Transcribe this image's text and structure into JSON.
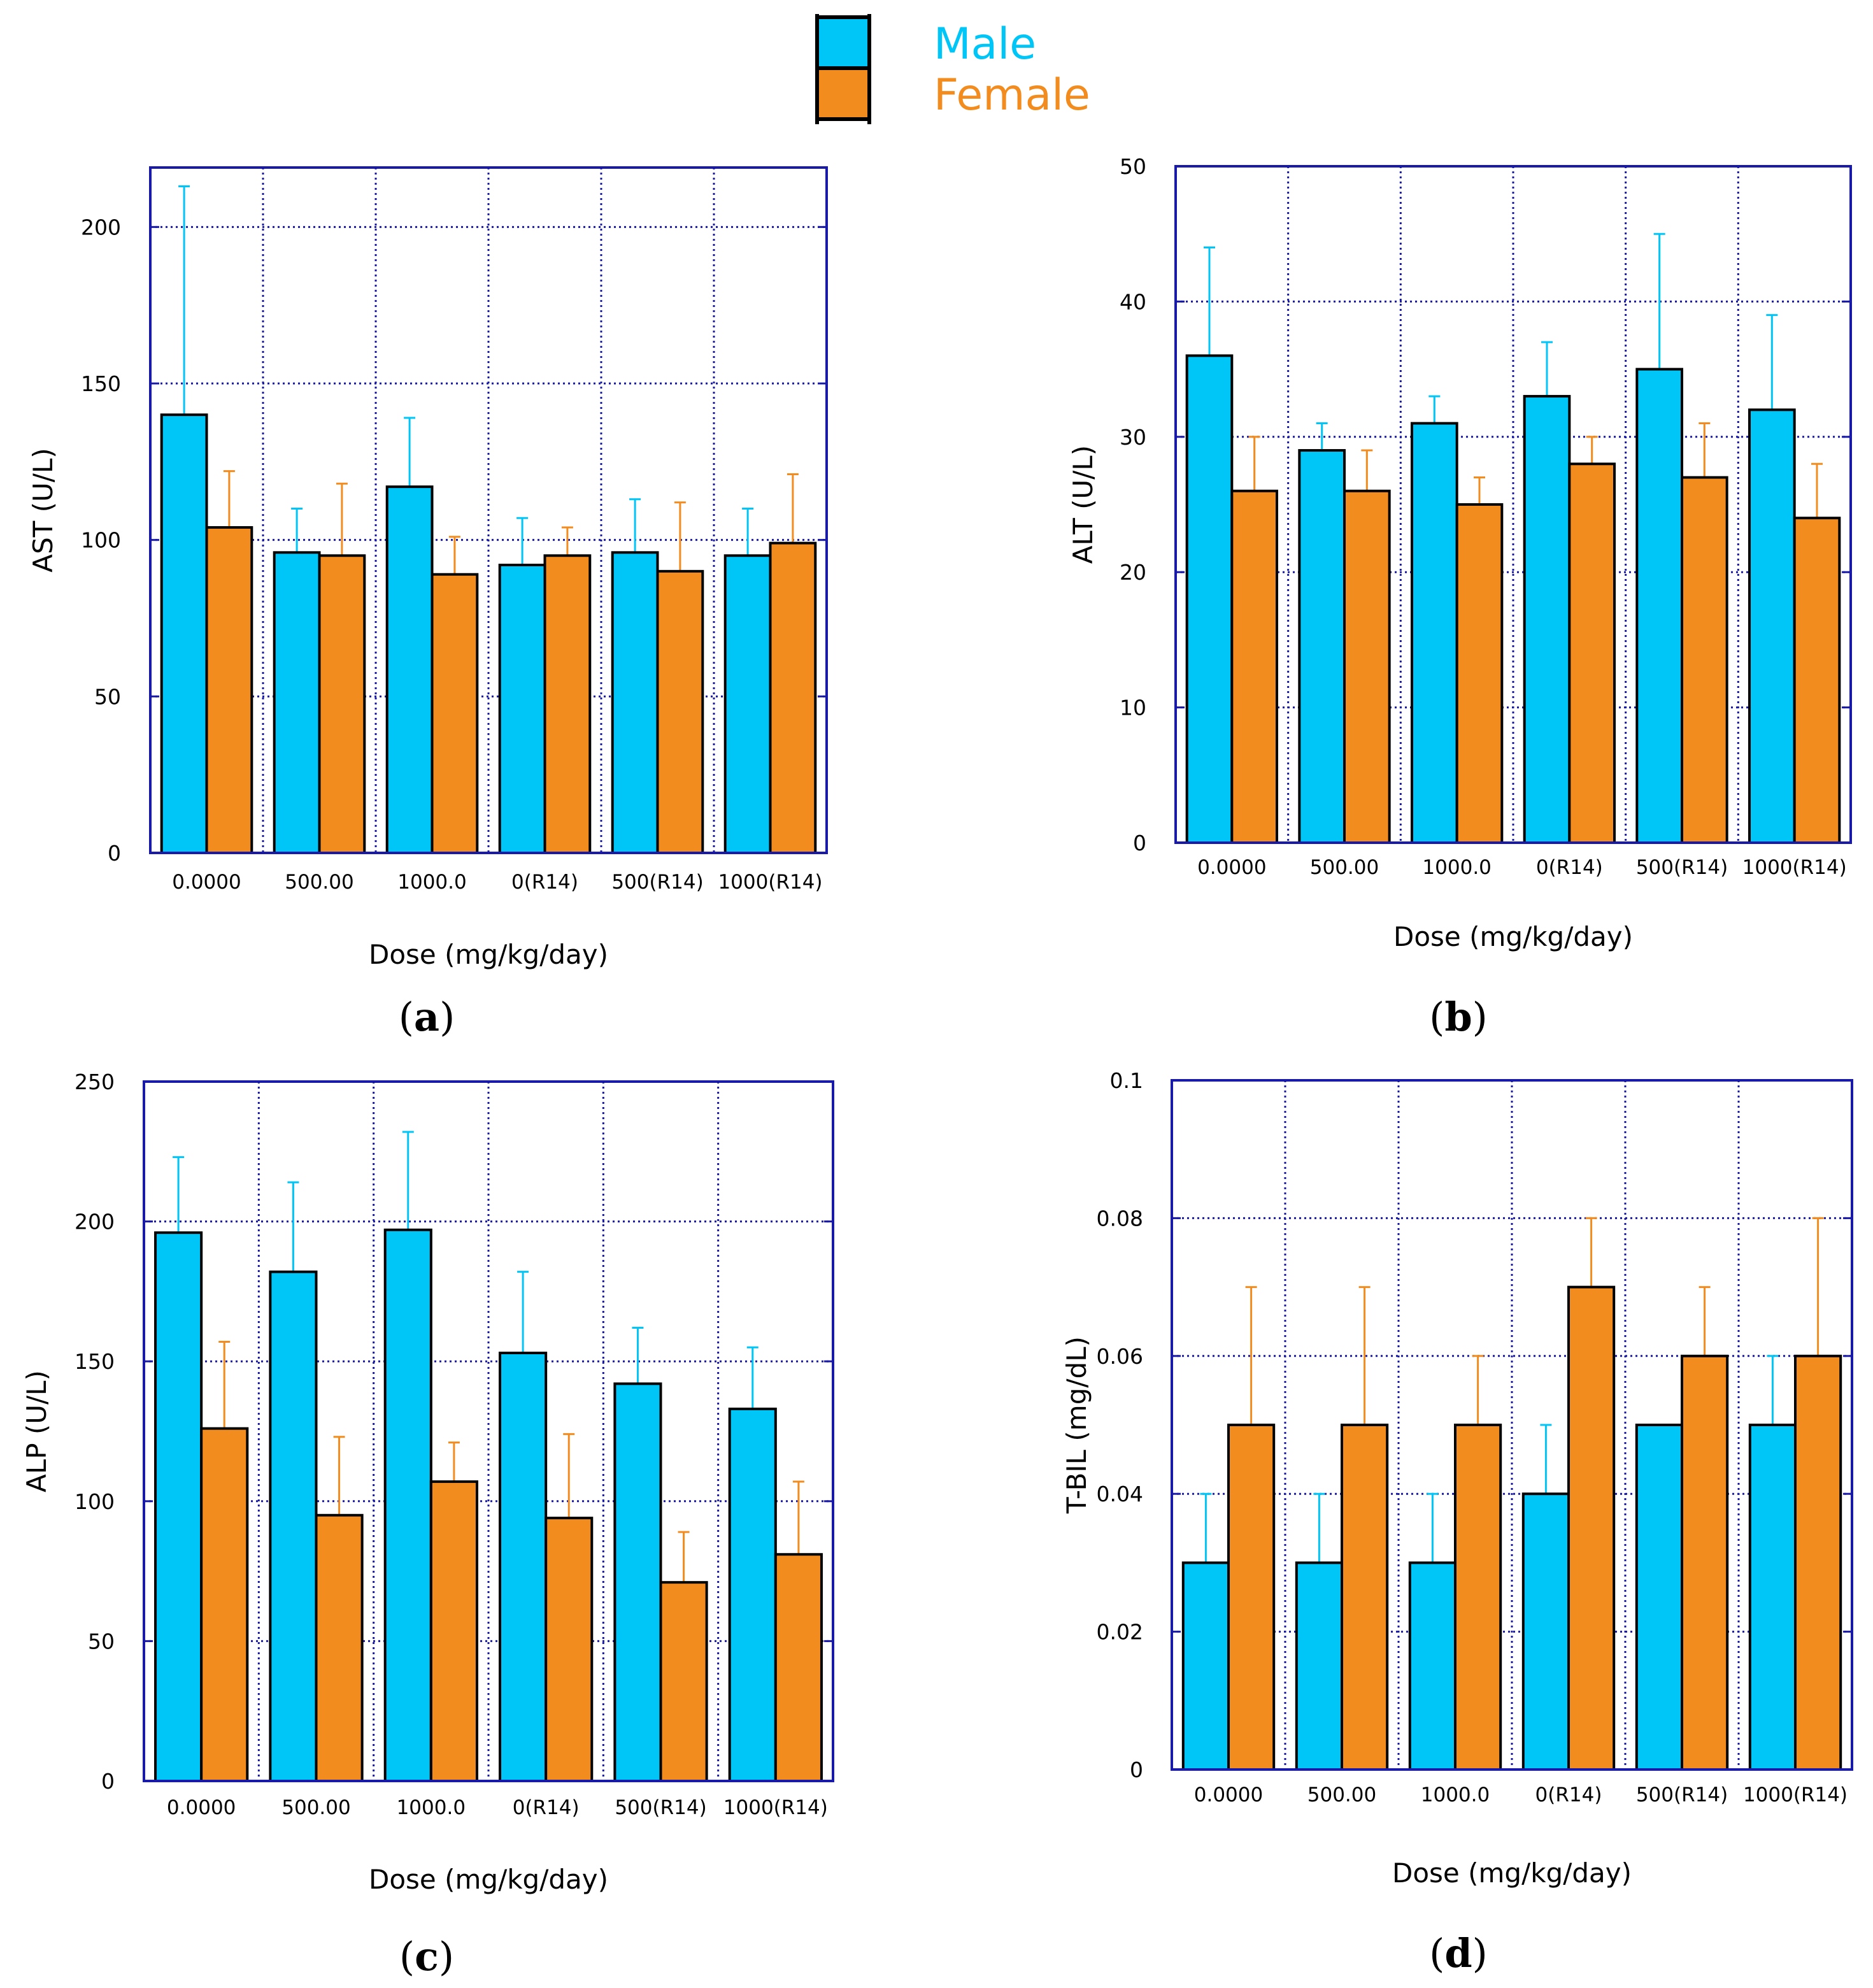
{
  "legend": {
    "male_label": "Male",
    "female_label": "Female",
    "male_color": "#00C5F7",
    "female_color": "#F28C1F"
  },
  "figure": {
    "axis_color": "#1A1AA8",
    "grid_color": "#1A1AA8"
  },
  "chart_data": [
    {
      "type": "bar",
      "panel": "a",
      "caption_letter": "a",
      "categories": [
        "0.0000",
        "500.00",
        "1000.0",
        "0(R14)",
        "500(R14)",
        "1000(R14)"
      ],
      "series": [
        {
          "name": "Male",
          "values": [
            140,
            96,
            117,
            92,
            96,
            95
          ],
          "errors": [
            73,
            14,
            22,
            15,
            17,
            15
          ]
        },
        {
          "name": "Female",
          "values": [
            104,
            95,
            89,
            95,
            90,
            99
          ],
          "errors": [
            18,
            23,
            12,
            9,
            22,
            22
          ]
        }
      ],
      "xlabel": "Dose (mg/kg/day)",
      "ylabel": "AST (U/L)",
      "ylim": [
        0,
        219
      ],
      "yticks": [
        0,
        50,
        100,
        150,
        200
      ],
      "ytick_labels": [
        "0",
        "50",
        "100",
        "150",
        "200"
      ],
      "grid": true
    },
    {
      "type": "bar",
      "panel": "b",
      "caption_letter": "b",
      "categories": [
        "0.0000",
        "500.00",
        "1000.0",
        "0(R14)",
        "500(R14)",
        "1000(R14)"
      ],
      "series": [
        {
          "name": "Male",
          "values": [
            36,
            29,
            31,
            33,
            35,
            32
          ],
          "errors": [
            8,
            2,
            2,
            4,
            10,
            7
          ]
        },
        {
          "name": "Female",
          "values": [
            26,
            26,
            25,
            28,
            27,
            24
          ],
          "errors": [
            4,
            3,
            2,
            2,
            4,
            4
          ]
        }
      ],
      "xlabel": "Dose (mg/kg/day)",
      "ylabel": "ALT (U/L)",
      "ylim": [
        0,
        50
      ],
      "yticks": [
        0,
        10,
        20,
        30,
        40,
        50
      ],
      "ytick_labels": [
        "0",
        "10",
        "20",
        "30",
        "40",
        "50"
      ],
      "grid": true
    },
    {
      "type": "bar",
      "panel": "c",
      "caption_letter": "c",
      "categories": [
        "0.0000",
        "500.00",
        "1000.0",
        "0(R14)",
        "500(R14)",
        "1000(R14)"
      ],
      "series": [
        {
          "name": "Male",
          "values": [
            196,
            182,
            197,
            153,
            142,
            133
          ],
          "errors": [
            27,
            32,
            35,
            29,
            20,
            22
          ]
        },
        {
          "name": "Female",
          "values": [
            126,
            95,
            107,
            94,
            71,
            81
          ],
          "errors": [
            31,
            28,
            14,
            30,
            18,
            26
          ]
        }
      ],
      "xlabel": "Dose (mg/kg/day)",
      "ylabel": "ALP (U/L)",
      "ylim": [
        0,
        250
      ],
      "yticks": [
        0,
        50,
        100,
        150,
        200,
        250
      ],
      "ytick_labels": [
        "0",
        "50",
        "100",
        "150",
        "200",
        "250"
      ],
      "grid": true
    },
    {
      "type": "bar",
      "panel": "d",
      "caption_letter": "d",
      "categories": [
        "0.0000",
        "500.00",
        "1000.0",
        "0(R14)",
        "500(R14)",
        "1000(R14)"
      ],
      "series": [
        {
          "name": "Male",
          "values": [
            0.03,
            0.03,
            0.03,
            0.04,
            0.05,
            0.05
          ],
          "errors": [
            0.01,
            0.01,
            0.01,
            0.01,
            0.0,
            0.01
          ]
        },
        {
          "name": "Female",
          "values": [
            0.05,
            0.05,
            0.05,
            0.07,
            0.06,
            0.06
          ],
          "errors": [
            0.02,
            0.02,
            0.01,
            0.01,
            0.01,
            0.02
          ]
        }
      ],
      "xlabel": "Dose (mg/kg/day)",
      "ylabel": "T-BIL (mg/dL)",
      "ylim": [
        0,
        0.1
      ],
      "yticks": [
        0,
        0.02,
        0.04,
        0.06,
        0.08,
        0.1
      ],
      "ytick_labels": [
        "0",
        "0.02",
        "0.04",
        "0.06",
        "0.08",
        "0.1"
      ],
      "grid": true
    }
  ]
}
